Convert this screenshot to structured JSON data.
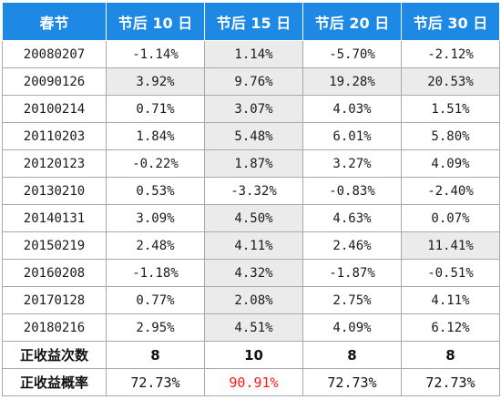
{
  "table": {
    "headers": [
      "春节",
      "节后 10 日",
      "节后 15 日",
      "节后 20 日",
      "节后 30 日"
    ],
    "rows": [
      {
        "date": "20080207",
        "values": [
          "-1.14%",
          "1.14%",
          "-5.70%",
          "-2.12%"
        ]
      },
      {
        "date": "20090126",
        "values": [
          "3.92%",
          "9.76%",
          "19.28%",
          "20.53%"
        ]
      },
      {
        "date": "20100214",
        "values": [
          "0.71%",
          "3.07%",
          "4.03%",
          "1.51%"
        ]
      },
      {
        "date": "20110203",
        "values": [
          "1.84%",
          "5.48%",
          "6.01%",
          "5.80%"
        ]
      },
      {
        "date": "20120123",
        "values": [
          "-0.22%",
          "1.87%",
          "3.27%",
          "4.09%"
        ]
      },
      {
        "date": "20130210",
        "values": [
          "0.53%",
          "-3.32%",
          "-0.83%",
          "-2.40%"
        ]
      },
      {
        "date": "20140131",
        "values": [
          "3.09%",
          "4.50%",
          "4.63%",
          "0.07%"
        ]
      },
      {
        "date": "20150219",
        "values": [
          "2.48%",
          "4.11%",
          "2.46%",
          "11.41%"
        ]
      },
      {
        "date": "20160208",
        "values": [
          "-1.18%",
          "4.32%",
          "-1.87%",
          "-0.51%"
        ]
      },
      {
        "date": "20170128",
        "values": [
          "0.77%",
          "2.08%",
          "2.75%",
          "4.11%"
        ]
      },
      {
        "date": "20180216",
        "values": [
          "2.95%",
          "4.51%",
          "4.09%",
          "6.12%"
        ]
      }
    ],
    "shaded_cells": [
      [
        false,
        true,
        false,
        false
      ],
      [
        true,
        true,
        true,
        true
      ],
      [
        false,
        true,
        false,
        false
      ],
      [
        false,
        true,
        false,
        false
      ],
      [
        false,
        true,
        false,
        false
      ],
      [
        false,
        false,
        false,
        false
      ],
      [
        false,
        true,
        false,
        false
      ],
      [
        false,
        true,
        false,
        true
      ],
      [
        false,
        true,
        false,
        false
      ],
      [
        false,
        true,
        false,
        false
      ],
      [
        false,
        true,
        false,
        false
      ]
    ],
    "summary": [
      {
        "label": "正收益次数",
        "values": [
          "8",
          "10",
          "8",
          "8"
        ]
      },
      {
        "label": "正收益概率",
        "values": [
          "72.73%",
          "90.91%",
          "72.73%",
          "72.73%"
        ]
      }
    ],
    "highlight": {
      "row": 1,
      "col": 1,
      "color": "#ff1a1a"
    },
    "colors": {
      "header_bg": "#1e88e5",
      "header_text": "#ffffff",
      "shade": "#ebebeb",
      "border": "#a9a9a9"
    }
  }
}
